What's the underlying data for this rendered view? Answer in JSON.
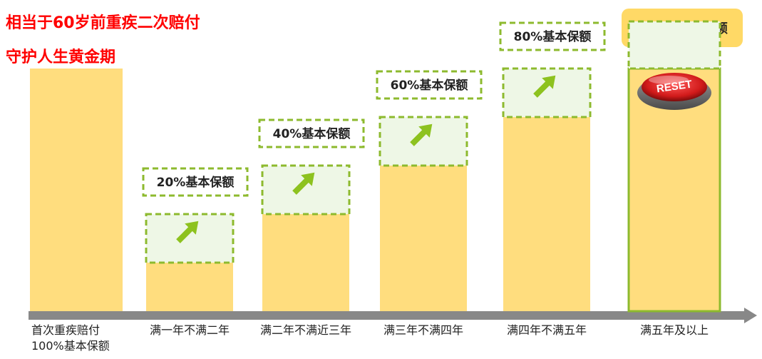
{
  "header": {
    "title_line1": "相当于60岁前重疾二次赔付",
    "title_line2": "守护人生黄金期",
    "badge": "100%基本保额"
  },
  "colors": {
    "title": "#ff0000",
    "bar": "#ffdd7e",
    "dashed_border": "#8dba2e",
    "arrow": "#8dc21f",
    "box_fill": "#eef7e6",
    "axis": "#888888",
    "badge": "#ffd966"
  },
  "reset_button": {
    "label": "RESET"
  },
  "chart_data": {
    "type": "bar",
    "title": "相当于60岁前重疾二次赔付",
    "categories": [
      "首次重疾赔付\n100%基本保额",
      "满一年不满二年",
      "满二年不满近三年",
      "满三年不满四年",
      "满四年不满五年",
      "满五年及以上"
    ],
    "values": [
      100,
      20,
      40,
      60,
      80,
      100
    ],
    "annotations": [
      "",
      "20%基本保额",
      "40%基本保额",
      "60%基本保额",
      "80%基本保额",
      ""
    ],
    "ylim": [
      0,
      100
    ],
    "xlabel": "",
    "ylabel": "",
    "grid": false
  }
}
